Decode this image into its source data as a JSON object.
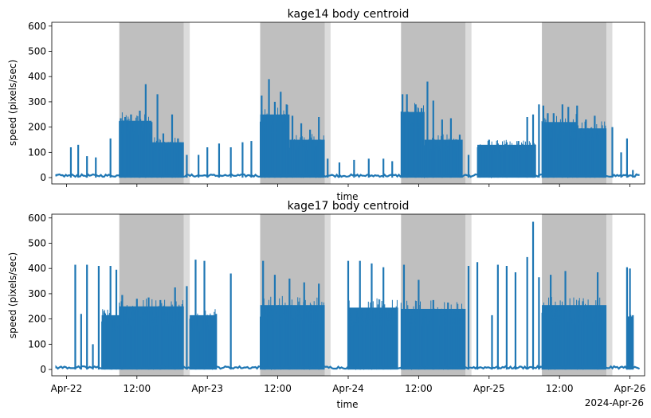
{
  "chart_data": [
    {
      "type": "line",
      "title": "kage14 body centroid",
      "xlabel": "time",
      "ylabel": "speed (pixels/sec)",
      "xlim": [
        "2024-04-21T21:30",
        "2024-04-26T02:30"
      ],
      "ylim": [
        -25,
        615
      ],
      "yticks": [
        0,
        100,
        200,
        300,
        400,
        500,
        600
      ],
      "xtick_labels_shown": false,
      "line_color": "#1f77b4",
      "shaded_periods": [
        {
          "start": "2024-04-22T09:00",
          "end": "2024-04-22T20:00",
          "color": "#bfbfbf"
        },
        {
          "start": "2024-04-22T20:00",
          "end": "2024-04-22T21:00",
          "color": "#dcdcdc"
        },
        {
          "start": "2024-04-23T09:00",
          "end": "2024-04-23T20:00",
          "color": "#bfbfbf"
        },
        {
          "start": "2024-04-23T20:00",
          "end": "2024-04-23T21:00",
          "color": "#dcdcdc"
        },
        {
          "start": "2024-04-24T09:00",
          "end": "2024-04-24T20:00",
          "color": "#bfbfbf"
        },
        {
          "start": "2024-04-24T20:00",
          "end": "2024-04-24T21:00",
          "color": "#dcdcdc"
        },
        {
          "start": "2024-04-25T09:00",
          "end": "2024-04-25T20:00",
          "color": "#bfbfbf"
        },
        {
          "start": "2024-04-25T20:00",
          "end": "2024-04-25T21:00",
          "color": "#dcdcdc"
        }
      ],
      "spikes": [
        [
          "2024-04-22T00:45",
          120
        ],
        [
          "2024-04-22T02:00",
          130
        ],
        [
          "2024-04-22T03:30",
          85
        ],
        [
          "2024-04-22T05:00",
          80
        ],
        [
          "2024-04-22T07:30",
          155
        ],
        [
          "2024-04-22T09:15",
          235
        ],
        [
          "2024-04-22T10:00",
          240
        ],
        [
          "2024-04-22T11:00",
          250
        ],
        [
          "2024-04-22T12:30",
          265
        ],
        [
          "2024-04-22T13:30",
          370
        ],
        [
          "2024-04-22T14:30",
          220
        ],
        [
          "2024-04-22T15:30",
          330
        ],
        [
          "2024-04-22T16:30",
          175
        ],
        [
          "2024-04-22T18:00",
          250
        ],
        [
          "2024-04-22T19:00",
          155
        ],
        [
          "2024-04-22T20:30",
          90
        ],
        [
          "2024-04-22T22:30",
          90
        ],
        [
          "2024-04-23T00:00",
          120
        ],
        [
          "2024-04-23T02:00",
          135
        ],
        [
          "2024-04-23T04:00",
          120
        ],
        [
          "2024-04-23T06:00",
          140
        ],
        [
          "2024-04-23T07:30",
          145
        ],
        [
          "2024-04-23T09:15",
          325
        ],
        [
          "2024-04-23T10:30",
          390
        ],
        [
          "2024-04-23T11:30",
          300
        ],
        [
          "2024-04-23T12:30",
          340
        ],
        [
          "2024-04-23T13:30",
          290
        ],
        [
          "2024-04-23T14:30",
          245
        ],
        [
          "2024-04-23T16:00",
          215
        ],
        [
          "2024-04-23T17:30",
          190
        ],
        [
          "2024-04-23T19:00",
          240
        ],
        [
          "2024-04-23T20:30",
          75
        ],
        [
          "2024-04-23T22:30",
          60
        ],
        [
          "2024-04-24T01:00",
          70
        ],
        [
          "2024-04-24T03:30",
          75
        ],
        [
          "2024-04-24T06:00",
          75
        ],
        [
          "2024-04-24T07:30",
          65
        ],
        [
          "2024-04-24T09:15",
          330
        ],
        [
          "2024-04-24T10:00",
          330
        ],
        [
          "2024-04-24T11:30",
          290
        ],
        [
          "2024-04-24T12:30",
          275
        ],
        [
          "2024-04-24T13:30",
          380
        ],
        [
          "2024-04-24T14:30",
          305
        ],
        [
          "2024-04-24T16:00",
          230
        ],
        [
          "2024-04-24T17:30",
          235
        ],
        [
          "2024-04-24T19:00",
          170
        ],
        [
          "2024-04-24T20:30",
          90
        ],
        [
          "2024-04-24T22:30",
          125
        ],
        [
          "2024-04-25T00:00",
          150
        ],
        [
          "2024-04-25T01:30",
          135
        ],
        [
          "2024-04-25T03:00",
          140
        ],
        [
          "2024-04-25T05:00",
          145
        ],
        [
          "2024-04-25T06:30",
          240
        ],
        [
          "2024-04-25T07:30",
          250
        ],
        [
          "2024-04-25T08:30",
          290
        ],
        [
          "2024-04-25T09:15",
          285
        ],
        [
          "2024-04-25T10:00",
          255
        ],
        [
          "2024-04-25T11:00",
          255
        ],
        [
          "2024-04-25T12:30",
          290
        ],
        [
          "2024-04-25T13:30",
          280
        ],
        [
          "2024-04-25T15:00",
          285
        ],
        [
          "2024-04-25T16:30",
          230
        ],
        [
          "2024-04-25T18:00",
          245
        ],
        [
          "2024-04-25T19:30",
          165
        ],
        [
          "2024-04-25T21:00",
          200
        ],
        [
          "2024-04-25T22:30",
          100
        ],
        [
          "2024-04-25T23:30",
          155
        ],
        [
          "2024-04-26T00:30",
          30
        ]
      ],
      "dense_bands": [
        {
          "start": "2024-04-22T09:00",
          "end": "2024-04-22T14:30",
          "level": 225
        },
        {
          "start": "2024-04-22T14:30",
          "end": "2024-04-22T20:00",
          "level": 140
        },
        {
          "start": "2024-04-23T09:00",
          "end": "2024-04-23T14:00",
          "level": 250
        },
        {
          "start": "2024-04-23T14:00",
          "end": "2024-04-23T20:00",
          "level": 150
        },
        {
          "start": "2024-04-24T09:00",
          "end": "2024-04-24T13:00",
          "level": 260
        },
        {
          "start": "2024-04-24T13:00",
          "end": "2024-04-24T19:30",
          "level": 150
        },
        {
          "start": "2024-04-24T22:00",
          "end": "2024-04-25T08:00",
          "level": 130
        },
        {
          "start": "2024-04-25T09:00",
          "end": "2024-04-25T15:00",
          "level": 220
        },
        {
          "start": "2024-04-25T15:00",
          "end": "2024-04-25T20:00",
          "level": 195
        }
      ]
    },
    {
      "type": "line",
      "title": "kage17 body centroid",
      "xlabel": "time",
      "ylabel": "speed (pixels/sec)",
      "xlim": [
        "2024-04-21T21:30",
        "2024-04-26T02:30"
      ],
      "ylim": [
        -25,
        615
      ],
      "yticks": [
        0,
        100,
        200,
        300,
        400,
        500,
        600
      ],
      "xticks": [
        "2024-04-22T00:00",
        "2024-04-22T12:00",
        "2024-04-23T00:00",
        "2024-04-23T12:00",
        "2024-04-24T00:00",
        "2024-04-24T12:00",
        "2024-04-25T00:00",
        "2024-04-25T12:00",
        "2024-04-26T00:00"
      ],
      "xtick_labels": [
        "Apr-22",
        "12:00",
        "Apr-23",
        "12:00",
        "Apr-24",
        "12:00",
        "Apr-25",
        "12:00",
        "Apr-26"
      ],
      "x_offset_label": "2024-Apr-26",
      "line_color": "#1f77b4",
      "shaded_periods": [
        {
          "start": "2024-04-22T09:00",
          "end": "2024-04-22T20:00",
          "color": "#bfbfbf"
        },
        {
          "start": "2024-04-22T20:00",
          "end": "2024-04-22T21:00",
          "color": "#dcdcdc"
        },
        {
          "start": "2024-04-23T09:00",
          "end": "2024-04-23T20:00",
          "color": "#bfbfbf"
        },
        {
          "start": "2024-04-23T20:00",
          "end": "2024-04-23T21:00",
          "color": "#dcdcdc"
        },
        {
          "start": "2024-04-24T09:00",
          "end": "2024-04-24T20:00",
          "color": "#bfbfbf"
        },
        {
          "start": "2024-04-24T20:00",
          "end": "2024-04-24T21:00",
          "color": "#dcdcdc"
        },
        {
          "start": "2024-04-25T09:00",
          "end": "2024-04-25T20:00",
          "color": "#bfbfbf"
        },
        {
          "start": "2024-04-25T20:00",
          "end": "2024-04-25T21:00",
          "color": "#dcdcdc"
        }
      ],
      "spikes": [
        [
          "2024-04-22T01:30",
          415
        ],
        [
          "2024-04-22T02:30",
          220
        ],
        [
          "2024-04-22T03:30",
          415
        ],
        [
          "2024-04-22T04:30",
          100
        ],
        [
          "2024-04-22T05:30",
          410
        ],
        [
          "2024-04-22T06:30",
          225
        ],
        [
          "2024-04-22T07:30",
          410
        ],
        [
          "2024-04-22T08:30",
          395
        ],
        [
          "2024-04-22T09:30",
          295
        ],
        [
          "2024-04-22T12:00",
          280
        ],
        [
          "2024-04-22T14:00",
          285
        ],
        [
          "2024-04-22T16:00",
          275
        ],
        [
          "2024-04-22T18:30",
          325
        ],
        [
          "2024-04-22T20:30",
          330
        ],
        [
          "2024-04-22T22:00",
          435
        ],
        [
          "2024-04-22T23:30",
          430
        ],
        [
          "2024-04-23T01:30",
          220
        ],
        [
          "2024-04-23T04:00",
          380
        ],
        [
          "2024-04-23T09:30",
          430
        ],
        [
          "2024-04-23T11:30",
          375
        ],
        [
          "2024-04-23T14:00",
          360
        ],
        [
          "2024-04-23T16:30",
          345
        ],
        [
          "2024-04-23T19:00",
          340
        ],
        [
          "2024-04-24T00:00",
          430
        ],
        [
          "2024-04-24T02:00",
          430
        ],
        [
          "2024-04-24T04:00",
          420
        ],
        [
          "2024-04-24T06:00",
          405
        ],
        [
          "2024-04-24T09:30",
          415
        ],
        [
          "2024-04-24T12:00",
          355
        ],
        [
          "2024-04-24T14:30",
          275
        ],
        [
          "2024-04-24T17:00",
          265
        ],
        [
          "2024-04-24T20:30",
          410
        ],
        [
          "2024-04-24T22:00",
          425
        ],
        [
          "2024-04-25T00:30",
          215
        ],
        [
          "2024-04-25T01:30",
          415
        ],
        [
          "2024-04-25T03:00",
          410
        ],
        [
          "2024-04-25T04:30",
          385
        ],
        [
          "2024-04-25T06:30",
          445
        ],
        [
          "2024-04-25T07:30",
          585
        ],
        [
          "2024-04-25T08:30",
          365
        ],
        [
          "2024-04-25T10:30",
          375
        ],
        [
          "2024-04-25T13:00",
          390
        ],
        [
          "2024-04-25T16:00",
          270
        ],
        [
          "2024-04-25T18:30",
          385
        ],
        [
          "2024-04-25T23:30",
          405
        ],
        [
          "2024-04-26T00:00",
          400
        ],
        [
          "2024-04-26T00:30",
          215
        ]
      ],
      "dense_bands": [
        {
          "start": "2024-04-22T06:00",
          "end": "2024-04-22T09:00",
          "level": 215
        },
        {
          "start": "2024-04-22T09:00",
          "end": "2024-04-22T20:00",
          "level": 250
        },
        {
          "start": "2024-04-22T21:00",
          "end": "2024-04-23T01:30",
          "level": 215
        },
        {
          "start": "2024-04-23T09:00",
          "end": "2024-04-23T20:00",
          "level": 255
        },
        {
          "start": "2024-04-24T00:00",
          "end": "2024-04-24T08:30",
          "level": 245
        },
        {
          "start": "2024-04-24T09:00",
          "end": "2024-04-24T20:00",
          "level": 240
        },
        {
          "start": "2024-04-25T09:00",
          "end": "2024-04-25T20:00",
          "level": 255
        },
        {
          "start": "2024-04-25T23:30",
          "end": "2024-04-26T00:30",
          "level": 210
        }
      ]
    }
  ]
}
